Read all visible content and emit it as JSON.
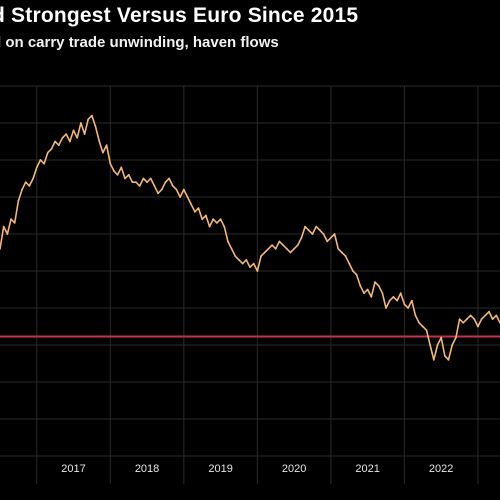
{
  "header": {
    "title": "d Strongest Versus Euro Since 2015",
    "subtitle": "d on carry trade unwinding, haven flows"
  },
  "colors": {
    "background": "#000000",
    "line": "#f2b776",
    "reference_line": "#c4334f",
    "grid": "#2a2a2a"
  },
  "chart_data": {
    "type": "line",
    "title": "d Strongest Versus Euro Since 2015",
    "subtitle": "d on carry trade unwinding, haven flows",
    "xlabel": "",
    "ylabel": "",
    "x_tick_labels": [
      "2017",
      "2018",
      "2019",
      "2020",
      "2021",
      "2022"
    ],
    "xlim": [
      2016.5,
      2023.3
    ],
    "ylim": [
      0,
      100
    ],
    "y_tick_labels": [],
    "grid": "horizontal and vertical",
    "legend": "none",
    "reference_line_y": 32.3,
    "series": [
      {
        "x": [
          2016.5,
          2016.55,
          2016.6,
          2016.65,
          2016.7,
          2016.75,
          2016.8,
          2016.85,
          2016.9,
          2016.95,
          2017.0,
          2017.05,
          2017.1,
          2017.15,
          2017.2,
          2017.25,
          2017.3,
          2017.35,
          2017.4,
          2017.45,
          2017.5,
          2017.55,
          2017.6,
          2017.65,
          2017.7,
          2017.75,
          2017.8,
          2017.85,
          2017.9,
          2017.95,
          2018.0,
          2018.05,
          2018.1,
          2018.15,
          2018.2,
          2018.25,
          2018.3,
          2018.35,
          2018.4,
          2018.45,
          2018.5,
          2018.55,
          2018.6,
          2018.65,
          2018.7,
          2018.75,
          2018.8,
          2018.85,
          2018.9,
          2018.95,
          2019.0,
          2019.05,
          2019.1,
          2019.15,
          2019.2,
          2019.25,
          2019.3,
          2019.35,
          2019.4,
          2019.45,
          2019.5,
          2019.55,
          2019.6,
          2019.65,
          2019.7,
          2019.75,
          2019.8,
          2019.85,
          2019.9,
          2019.95,
          2020.0,
          2020.05,
          2020.1,
          2020.15,
          2020.2,
          2020.25,
          2020.3,
          2020.35,
          2020.4,
          2020.45,
          2020.5,
          2020.55,
          2020.6,
          2020.65,
          2020.7,
          2020.75,
          2020.8,
          2020.85,
          2020.9,
          2020.95,
          2021.0,
          2021.05,
          2021.1,
          2021.15,
          2021.2,
          2021.25,
          2021.3,
          2021.35,
          2021.4,
          2021.45,
          2021.5,
          2021.55,
          2021.6,
          2021.65,
          2021.7,
          2021.75,
          2021.8,
          2021.85,
          2021.9,
          2021.95,
          2022.0,
          2022.05,
          2022.1,
          2022.15,
          2022.2,
          2022.25,
          2022.3,
          2022.35,
          2022.4,
          2022.45,
          2022.5,
          2022.55,
          2022.6,
          2022.65,
          2022.7,
          2022.75,
          2022.8,
          2022.85,
          2022.9,
          2022.95,
          2023.0,
          2023.05,
          2023.1,
          2023.15,
          2023.2,
          2023.25,
          2023.3
        ],
        "values": [
          56,
          62,
          60,
          64,
          63,
          69,
          72,
          74,
          73,
          75,
          78,
          80,
          79,
          82,
          83,
          85,
          84,
          86,
          87,
          85,
          88,
          86,
          90,
          87,
          91,
          92,
          89,
          85,
          82,
          84,
          79,
          77,
          76,
          78,
          75,
          76,
          74,
          74,
          73,
          75,
          74,
          75,
          73,
          71,
          72,
          74,
          75,
          73,
          72,
          70,
          72,
          70,
          68,
          66,
          67,
          64,
          65,
          62,
          64,
          63,
          64,
          62,
          58,
          56,
          54,
          53,
          52,
          53,
          51,
          52,
          50,
          54,
          55,
          56,
          57,
          56,
          58,
          57,
          56,
          55,
          56,
          57,
          59,
          62,
          61,
          60,
          62,
          61,
          60,
          58,
          59,
          60,
          56,
          55,
          54,
          52,
          50,
          49,
          46,
          44,
          45,
          43,
          47,
          46,
          44,
          40,
          42,
          43,
          42,
          44,
          41,
          40,
          42,
          38,
          36,
          35,
          34,
          30,
          26,
          30,
          32,
          27,
          26,
          30,
          32,
          37,
          36,
          37,
          38,
          37,
          35,
          37,
          38,
          39,
          37,
          38,
          36
        ]
      }
    ]
  }
}
